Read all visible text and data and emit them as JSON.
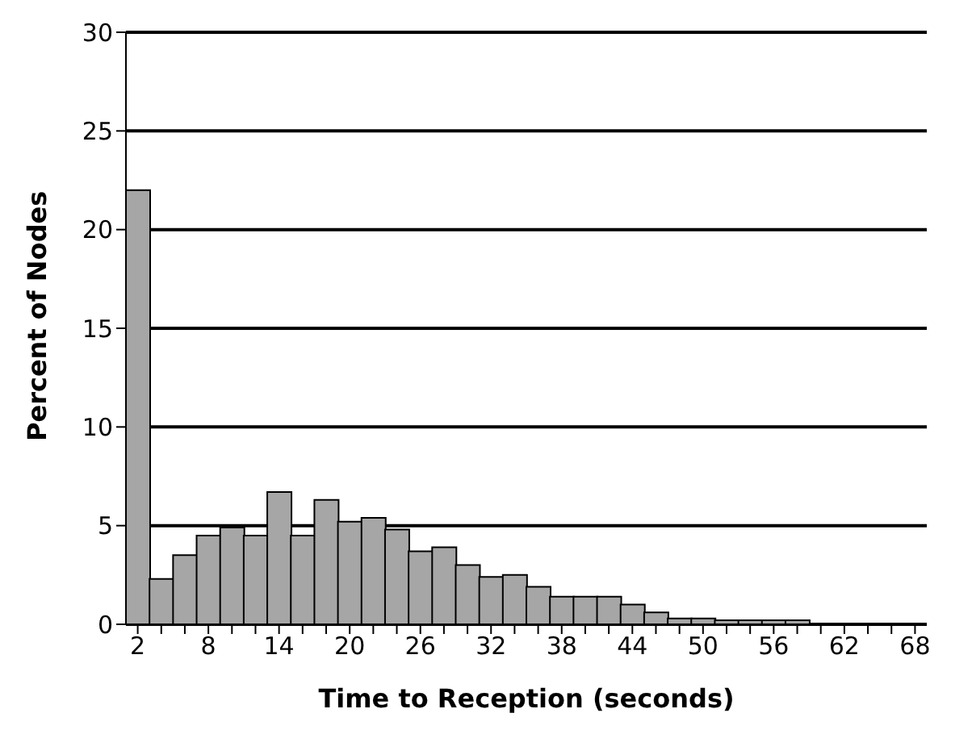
{
  "chart_data": {
    "type": "bar",
    "xlabel": "Time to Reception (seconds)",
    "ylabel": "Percent of Nodes",
    "categories": [
      "2",
      null,
      null,
      "8",
      null,
      null,
      "14",
      null,
      null,
      "20",
      null,
      null,
      "26",
      null,
      null,
      "32",
      null,
      null,
      "38",
      null,
      null,
      "44",
      null,
      null,
      "50",
      null,
      null,
      "56",
      null,
      null,
      "62",
      null,
      null,
      "68"
    ],
    "values": [
      22,
      2.3,
      3.5,
      4.5,
      4.9,
      4.5,
      6.7,
      4.5,
      6.3,
      5.2,
      5.4,
      4.8,
      3.7,
      3.9,
      3.0,
      2.4,
      2.5,
      1.9,
      1.4,
      1.4,
      1.4,
      1.0,
      0.6,
      0.3,
      0.3,
      0.2,
      0.2,
      0.2,
      0.2,
      0,
      0,
      0,
      0,
      0
    ],
    "color": "#a6a6a6",
    "ylim": [
      0,
      30
    ],
    "yticks": [
      0,
      5,
      10,
      15,
      20,
      25,
      30
    ],
    "grid": "y",
    "legend": false
  }
}
